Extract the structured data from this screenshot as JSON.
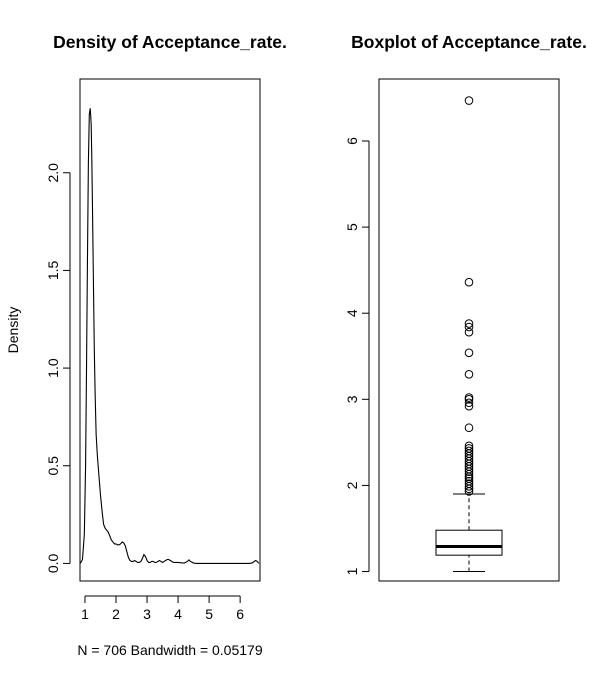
{
  "chart_data": [
    {
      "type": "line",
      "title": "Density of Acceptance_rate.",
      "xlabel": "N = 706   Bandwidth = 0.05179",
      "ylabel": "Density",
      "xlim": [
        0.84,
        6.64
      ],
      "ylim": [
        -0.09,
        2.48
      ],
      "x_ticks": [
        1,
        2,
        3,
        4,
        5,
        6
      ],
      "x_tick_labels": [
        "1",
        "2",
        "3",
        "4",
        "5",
        "6"
      ],
      "y_ticks": [
        0.0,
        0.5,
        1.0,
        1.5,
        2.0
      ],
      "y_tick_labels": [
        "0.0",
        "0.5",
        "1.0",
        "1.5",
        "2.0"
      ],
      "grid": false,
      "series": [
        {
          "x": [
            0.85,
            0.92,
            0.98,
            1.02,
            1.05,
            1.08,
            1.11,
            1.14,
            1.17,
            1.2,
            1.22,
            1.24,
            1.26,
            1.28,
            1.3,
            1.33,
            1.36,
            1.4,
            1.45,
            1.5,
            1.55,
            1.6,
            1.65,
            1.7,
            1.75,
            1.8,
            1.85,
            1.9,
            1.95,
            2.0,
            2.05,
            2.1,
            2.15,
            2.2,
            2.25,
            2.3,
            2.35,
            2.4,
            2.45,
            2.5,
            2.55,
            2.6,
            2.65,
            2.7,
            2.75,
            2.8,
            2.85,
            2.9,
            2.95,
            3.0,
            3.05,
            3.1,
            3.15,
            3.2,
            3.25,
            3.3,
            3.35,
            3.4,
            3.45,
            3.5,
            3.55,
            3.6,
            3.65,
            3.7,
            3.75,
            3.8,
            3.85,
            3.9,
            3.95,
            4.0,
            4.1,
            4.2,
            4.3,
            4.35,
            4.4,
            4.5,
            4.6,
            4.8,
            5.0,
            5.5,
            6.0,
            6.3,
            6.4,
            6.45,
            6.5,
            6.55,
            6.6
          ],
          "y": [
            0.0,
            0.02,
            0.15,
            0.5,
            1.0,
            1.55,
            2.05,
            2.3,
            2.33,
            2.25,
            2.08,
            1.85,
            1.6,
            1.35,
            1.1,
            0.85,
            0.66,
            0.55,
            0.45,
            0.35,
            0.27,
            0.2,
            0.18,
            0.17,
            0.16,
            0.14,
            0.12,
            0.11,
            0.1,
            0.1,
            0.095,
            0.095,
            0.1,
            0.11,
            0.105,
            0.09,
            0.06,
            0.03,
            0.015,
            0.01,
            0.01,
            0.015,
            0.01,
            0.005,
            0.005,
            0.01,
            0.025,
            0.045,
            0.035,
            0.015,
            0.005,
            0.005,
            0.01,
            0.01,
            0.005,
            0.005,
            0.01,
            0.015,
            0.01,
            0.005,
            0.01,
            0.015,
            0.02,
            0.02,
            0.015,
            0.01,
            0.005,
            0.005,
            0.005,
            0.005,
            0.003,
            0.002,
            0.01,
            0.018,
            0.01,
            0.002,
            0.0,
            0.0,
            0.0,
            0.0,
            0.0,
            0.0,
            0.003,
            0.01,
            0.015,
            0.01,
            0.0
          ]
        }
      ]
    },
    {
      "type": "box",
      "title": "Boxplot of Acceptance_rate.",
      "ylim": [
        0.89,
        6.72
      ],
      "y_ticks": [
        1,
        2,
        3,
        4,
        5,
        6
      ],
      "y_tick_labels": [
        "1",
        "2",
        "3",
        "4",
        "5",
        "6"
      ],
      "grid": false,
      "box": {
        "whisker_low": 1.0,
        "q1": 1.19,
        "median": 1.29,
        "q3": 1.48,
        "whisker_high": 1.9
      },
      "outliers": [
        1.93,
        1.96,
        1.99,
        2.02,
        2.05,
        2.08,
        2.1,
        2.13,
        2.16,
        2.19,
        2.22,
        2.25,
        2.28,
        2.31,
        2.34,
        2.37,
        2.4,
        2.43,
        2.46,
        2.67,
        2.92,
        2.96,
        3.0,
        3.02,
        3.29,
        3.54,
        3.78,
        3.84,
        3.88,
        4.36,
        6.47
      ]
    }
  ]
}
